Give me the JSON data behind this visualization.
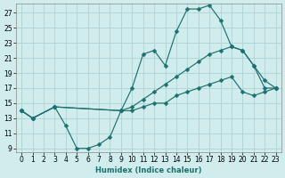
{
  "xlabel": "Humidex (Indice chaleur)",
  "bg_color": "#d0ecec",
  "grid_color": "#aed4d4",
  "line_color": "#1e7070",
  "xlim": [
    -0.5,
    23.5
  ],
  "ylim": [
    8.5,
    28.2
  ],
  "xticks": [
    0,
    1,
    2,
    3,
    4,
    5,
    6,
    7,
    8,
    9,
    10,
    11,
    12,
    13,
    14,
    15,
    16,
    17,
    18,
    19,
    20,
    21,
    22,
    23
  ],
  "yticks": [
    9,
    11,
    13,
    15,
    17,
    19,
    21,
    23,
    25,
    27
  ],
  "series": [
    {
      "x": [
        0,
        1,
        3,
        4,
        5,
        6,
        7,
        8,
        9,
        10,
        11,
        12,
        13,
        14,
        15,
        16,
        17,
        18,
        19,
        20,
        21,
        22,
        23
      ],
      "y": [
        14,
        13,
        14.5,
        12,
        9,
        9,
        9.5,
        10.5,
        14,
        14,
        14.5,
        15,
        15,
        16,
        16.5,
        17,
        17.5,
        18,
        18.5,
        16.5,
        16,
        16.5,
        17
      ]
    },
    {
      "x": [
        0,
        1,
        3,
        9,
        10,
        11,
        12,
        13,
        14,
        15,
        16,
        17,
        18,
        19,
        20,
        21,
        22,
        23
      ],
      "y": [
        14,
        13,
        14.5,
        14,
        14.5,
        15.5,
        16.5,
        17.5,
        18.5,
        19.5,
        20.5,
        21.5,
        22,
        22.5,
        22,
        20,
        17,
        17
      ]
    },
    {
      "x": [
        0,
        1,
        3,
        9,
        10,
        11,
        12,
        13,
        14,
        15,
        16,
        17,
        18,
        19,
        20,
        21,
        22,
        23
      ],
      "y": [
        14,
        13,
        14.5,
        14,
        17,
        21.5,
        22,
        20,
        24.5,
        27.5,
        27.5,
        28,
        26,
        22.5,
        22,
        20,
        18,
        17
      ]
    }
  ]
}
